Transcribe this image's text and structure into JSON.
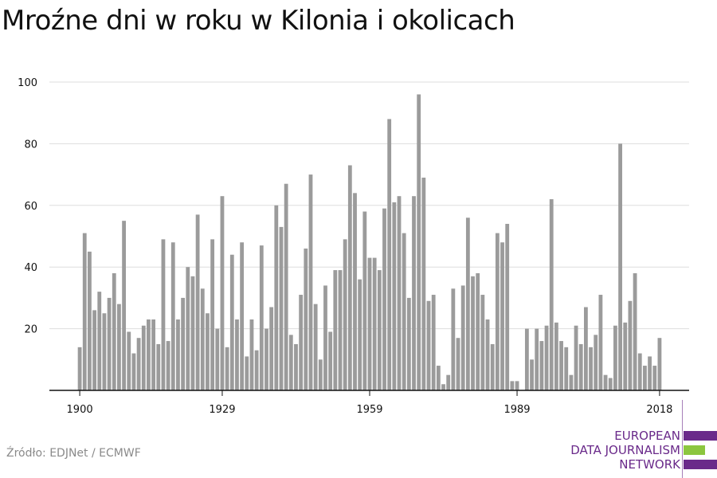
{
  "title": "Mroźne dni w roku w Kilonia i okolicach",
  "source": "Źródło: EDJNet / ECMWF",
  "logo": {
    "lines": [
      "EUROPEAN",
      "DATA JOURNALISM",
      "NETWORK"
    ],
    "colors": {
      "purple": "#6a2a8a",
      "green": "#8cc63f"
    }
  },
  "colors": {
    "bar": "#9b9b9b",
    "grid": "#dddddd",
    "axis": "#111111"
  },
  "chart_data": {
    "type": "bar",
    "title": "Mroźne dni w roku w Kilonia i okolicach",
    "xlabel": "",
    "ylabel": "",
    "ylim": [
      0,
      100
    ],
    "yticks": [
      20,
      40,
      60,
      80,
      100
    ],
    "xticks": [
      1900,
      1929,
      1959,
      1989,
      2018
    ],
    "grid": true,
    "categories": [
      1900,
      1901,
      1902,
      1903,
      1904,
      1905,
      1906,
      1907,
      1908,
      1909,
      1910,
      1911,
      1912,
      1913,
      1914,
      1915,
      1916,
      1917,
      1918,
      1919,
      1920,
      1921,
      1922,
      1923,
      1924,
      1925,
      1926,
      1927,
      1928,
      1929,
      1930,
      1931,
      1932,
      1933,
      1934,
      1935,
      1936,
      1937,
      1938,
      1939,
      1940,
      1941,
      1942,
      1943,
      1944,
      1945,
      1946,
      1947,
      1948,
      1949,
      1950,
      1951,
      1952,
      1953,
      1954,
      1955,
      1956,
      1957,
      1958,
      1959,
      1960,
      1961,
      1962,
      1963,
      1964,
      1965,
      1966,
      1967,
      1968,
      1969,
      1970,
      1971,
      1972,
      1973,
      1974,
      1975,
      1976,
      1977,
      1978,
      1979,
      1980,
      1981,
      1982,
      1983,
      1984,
      1985,
      1986,
      1987,
      1988,
      1989,
      1990,
      1991,
      1992,
      1993,
      1994,
      1995,
      1996,
      1997,
      1998,
      1999,
      2000,
      2001,
      2002,
      2003,
      2004,
      2005,
      2006,
      2007,
      2008,
      2009,
      2010,
      2011,
      2012,
      2013,
      2014,
      2015,
      2016,
      2017,
      2018
    ],
    "values": [
      14,
      51,
      45,
      26,
      32,
      25,
      30,
      38,
      28,
      55,
      19,
      12,
      17,
      21,
      23,
      23,
      15,
      49,
      16,
      48,
      23,
      30,
      40,
      37,
      57,
      33,
      25,
      49,
      20,
      63,
      14,
      44,
      23,
      48,
      11,
      23,
      13,
      47,
      20,
      27,
      60,
      53,
      67,
      18,
      15,
      31,
      46,
      70,
      28,
      10,
      34,
      19,
      39,
      39,
      49,
      73,
      64,
      36,
      58,
      43,
      43,
      39,
      59,
      88,
      61,
      63,
      51,
      30,
      63,
      96,
      69,
      29,
      31,
      8,
      2,
      5,
      33,
      17,
      34,
      56,
      37,
      38,
      31,
      23,
      15,
      51,
      48,
      54,
      3,
      3,
      0,
      20,
      10,
      20,
      16,
      21,
      62,
      22,
      16,
      14,
      5,
      21,
      15,
      27,
      14,
      18,
      31,
      5,
      4,
      21,
      80,
      22,
      29,
      38,
      12,
      8,
      11,
      8,
      17
    ]
  }
}
